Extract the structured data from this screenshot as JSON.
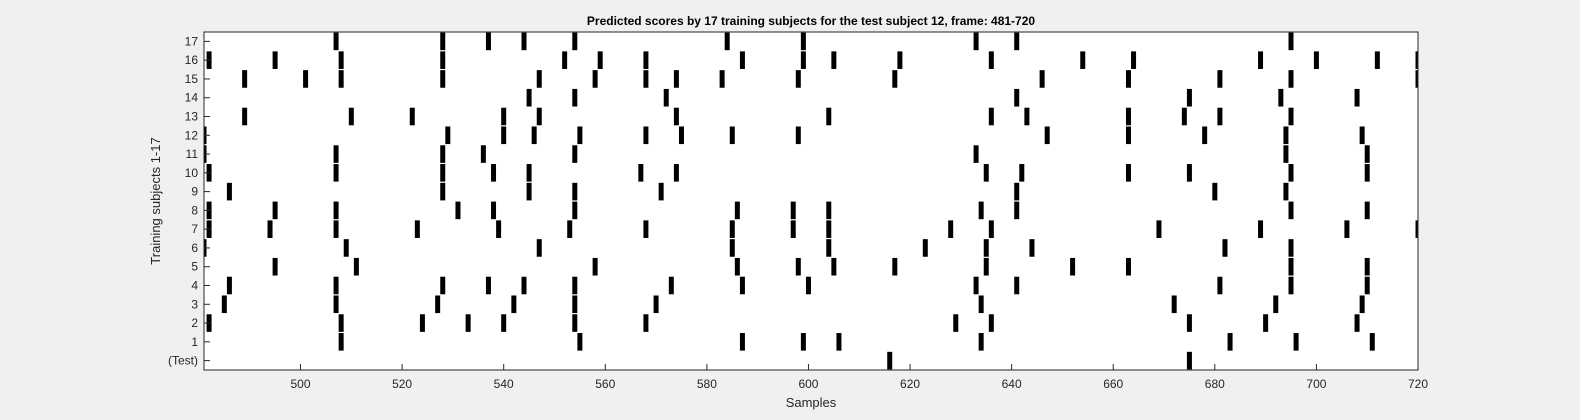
{
  "chart_data": {
    "type": "heatmap",
    "title": "Predicted scores by 17 training subjects for the test subject 12, frame: 481-720",
    "xlabel": "Samples",
    "ylabel": "Training subjects 1-17",
    "xlim": [
      481,
      720
    ],
    "xticks": [
      500,
      520,
      540,
      560,
      580,
      600,
      620,
      640,
      660,
      680,
      700,
      720
    ],
    "yticklabels": [
      "(Test)",
      "1",
      "2",
      "3",
      "4",
      "5",
      "6",
      "7",
      "8",
      "9",
      "10",
      "11",
      "12",
      "13",
      "14",
      "15",
      "16",
      "17"
    ],
    "colors": {
      "mark": "#000000",
      "background": "#ffffff",
      "figure": "#f0f0f0"
    },
    "rows": [
      {
        "label": "(Test)",
        "samples": [
          616,
          675
        ]
      },
      {
        "label": "1",
        "samples": [
          508,
          555,
          587,
          599,
          606,
          634,
          683,
          696,
          711
        ]
      },
      {
        "label": "2",
        "samples": [
          482,
          508,
          524,
          533,
          540,
          554,
          568,
          629,
          636,
          675,
          690,
          708
        ]
      },
      {
        "label": "3",
        "samples": [
          485,
          507,
          527,
          542,
          554,
          570,
          634,
          672,
          692,
          709
        ]
      },
      {
        "label": "4",
        "samples": [
          486,
          507,
          528,
          537,
          544,
          554,
          573,
          587,
          600,
          633,
          641,
          681,
          695,
          710
        ]
      },
      {
        "label": "5",
        "samples": [
          495,
          511,
          558,
          586,
          598,
          605,
          617,
          635,
          652,
          663,
          695,
          710
        ]
      },
      {
        "label": "6",
        "samples": [
          481,
          509,
          547,
          585,
          604,
          623,
          635,
          644,
          682,
          695
        ]
      },
      {
        "label": "7",
        "samples": [
          482,
          494,
          507,
          523,
          539,
          553,
          568,
          585,
          597,
          604,
          628,
          636,
          669,
          689,
          706,
          720
        ]
      },
      {
        "label": "8",
        "samples": [
          482,
          495,
          507,
          531,
          538,
          554,
          586,
          597,
          604,
          634,
          641,
          695,
          710
        ]
      },
      {
        "label": "9",
        "samples": [
          486,
          528,
          545,
          554,
          571,
          641,
          680,
          694
        ]
      },
      {
        "label": "10",
        "samples": [
          482,
          507,
          528,
          538,
          545,
          567,
          574,
          635,
          642,
          663,
          675,
          695,
          710
        ]
      },
      {
        "label": "11",
        "samples": [
          481,
          507,
          528,
          536,
          554,
          633,
          694,
          710
        ]
      },
      {
        "label": "12",
        "samples": [
          481,
          529,
          540,
          546,
          555,
          568,
          575,
          585,
          598,
          647,
          663,
          678,
          694,
          709
        ]
      },
      {
        "label": "13",
        "samples": [
          489,
          510,
          522,
          540,
          547,
          574,
          604,
          636,
          643,
          663,
          674,
          681,
          695
        ]
      },
      {
        "label": "14",
        "samples": [
          545,
          554,
          572,
          641,
          675,
          693,
          708
        ]
      },
      {
        "label": "15",
        "samples": [
          489,
          501,
          508,
          528,
          547,
          558,
          568,
          574,
          583,
          598,
          617,
          646,
          663,
          681,
          695,
          720
        ]
      },
      {
        "label": "16",
        "samples": [
          482,
          495,
          508,
          528,
          552,
          559,
          568,
          587,
          599,
          605,
          618,
          636,
          654,
          664,
          689,
          700,
          712,
          720
        ]
      },
      {
        "label": "17",
        "samples": [
          507,
          528,
          537,
          544,
          554,
          584,
          599,
          633,
          641,
          695
        ]
      }
    ]
  }
}
